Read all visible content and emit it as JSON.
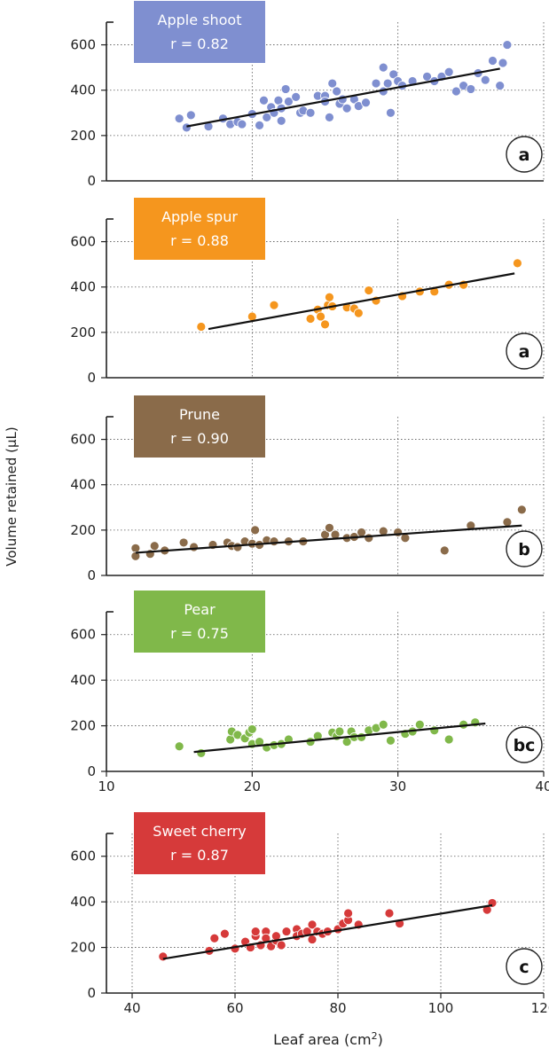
{
  "ylabel": "Volume retained (μL)",
  "chart_data": [
    {
      "type": "scatter",
      "title": "Apple shoot",
      "r_label": "r = 0.82",
      "letter": "a",
      "color": "#7f8fd0",
      "xlim": [
        10,
        40
      ],
      "ylim": [
        0,
        700
      ],
      "yticks": [
        0,
        200,
        400,
        600
      ],
      "ylabel": "Volume retained (μL)",
      "fit": [
        [
          15.5,
          240
        ],
        [
          37,
          495
        ]
      ],
      "points": [
        [
          15,
          275
        ],
        [
          15.5,
          235
        ],
        [
          15.8,
          290
        ],
        [
          17,
          240
        ],
        [
          18,
          275
        ],
        [
          18.5,
          250
        ],
        [
          19,
          260
        ],
        [
          19.3,
          250
        ],
        [
          20,
          295
        ],
        [
          20.5,
          245
        ],
        [
          20.8,
          355
        ],
        [
          21,
          280
        ],
        [
          21.3,
          325
        ],
        [
          21.5,
          300
        ],
        [
          21.8,
          355
        ],
        [
          22,
          320
        ],
        [
          22,
          265
        ],
        [
          22.3,
          405
        ],
        [
          22.5,
          350
        ],
        [
          23,
          370
        ],
        [
          23.3,
          300
        ],
        [
          23.5,
          310
        ],
        [
          24,
          300
        ],
        [
          24.5,
          375
        ],
        [
          25,
          375
        ],
        [
          25,
          350
        ],
        [
          25.3,
          280
        ],
        [
          25.5,
          430
        ],
        [
          25.8,
          395
        ],
        [
          26,
          340
        ],
        [
          26.2,
          360
        ],
        [
          26.5,
          320
        ],
        [
          27,
          360
        ],
        [
          27.3,
          330
        ],
        [
          27.8,
          345
        ],
        [
          28.5,
          430
        ],
        [
          29,
          395
        ],
        [
          29,
          500
        ],
        [
          29.3,
          430
        ],
        [
          29.5,
          300
        ],
        [
          29.7,
          470
        ],
        [
          30,
          440
        ],
        [
          30.3,
          420
        ],
        [
          31,
          440
        ],
        [
          32,
          460
        ],
        [
          32.5,
          440
        ],
        [
          33,
          460
        ],
        [
          34,
          395
        ],
        [
          34.5,
          420
        ],
        [
          35,
          405
        ],
        [
          35.5,
          475
        ],
        [
          36,
          445
        ],
        [
          36.5,
          530
        ],
        [
          37,
          420
        ],
        [
          37.2,
          520
        ],
        [
          37.5,
          600
        ],
        [
          33.5,
          480
        ]
      ]
    },
    {
      "type": "scatter",
      "title": "Apple spur",
      "r_label": "r = 0.88",
      "letter": "a",
      "color": "#f5961e",
      "xlim": [
        10,
        40
      ],
      "ylim": [
        0,
        700
      ],
      "yticks": [
        0,
        200,
        400,
        600
      ],
      "fit": [
        [
          17,
          215
        ],
        [
          38,
          460
        ]
      ],
      "points": [
        [
          16.5,
          225
        ],
        [
          20,
          270
        ],
        [
          21.5,
          320
        ],
        [
          24,
          260
        ],
        [
          24.5,
          300
        ],
        [
          24.7,
          270
        ],
        [
          25,
          235
        ],
        [
          25.2,
          320
        ],
        [
          25.3,
          355
        ],
        [
          25.5,
          315
        ],
        [
          26.5,
          310
        ],
        [
          27,
          305
        ],
        [
          27.3,
          285
        ],
        [
          28,
          385
        ],
        [
          28.5,
          340
        ],
        [
          30.3,
          360
        ],
        [
          31.5,
          380
        ],
        [
          32.5,
          380
        ],
        [
          33.5,
          410
        ],
        [
          34.5,
          410
        ],
        [
          38.2,
          505
        ]
      ]
    },
    {
      "type": "scatter",
      "title": "Prune",
      "r_label": "r = 0.90",
      "letter": "b",
      "color": "#8a6b4a",
      "xlim": [
        10,
        40
      ],
      "ylim": [
        0,
        700
      ],
      "yticks": [
        0,
        200,
        400,
        600
      ],
      "fit": [
        [
          12,
          100
        ],
        [
          38.5,
          220
        ]
      ],
      "points": [
        [
          12,
          120
        ],
        [
          12,
          85
        ],
        [
          13,
          95
        ],
        [
          13.3,
          130
        ],
        [
          14,
          110
        ],
        [
          15.3,
          145
        ],
        [
          16,
          125
        ],
        [
          17.3,
          135
        ],
        [
          18.3,
          145
        ],
        [
          18.6,
          130
        ],
        [
          19,
          125
        ],
        [
          19.5,
          150
        ],
        [
          20,
          140
        ],
        [
          20.2,
          200
        ],
        [
          20.5,
          135
        ],
        [
          21,
          155
        ],
        [
          21.5,
          150
        ],
        [
          22.5,
          150
        ],
        [
          23.5,
          150
        ],
        [
          25,
          180
        ],
        [
          25.3,
          210
        ],
        [
          25.7,
          180
        ],
        [
          26.5,
          165
        ],
        [
          27,
          170
        ],
        [
          27.5,
          190
        ],
        [
          28,
          165
        ],
        [
          29,
          195
        ],
        [
          30,
          190
        ],
        [
          30.5,
          165
        ],
        [
          33.2,
          110
        ],
        [
          35,
          220
        ],
        [
          37.5,
          235
        ],
        [
          38.5,
          290
        ]
      ]
    },
    {
      "type": "scatter",
      "title": "Pear",
      "r_label": "r = 0.75",
      "letter": "bc",
      "color": "#80b84a",
      "xlim": [
        10,
        40
      ],
      "ylim": [
        0,
        700
      ],
      "yticks": [
        0,
        200,
        400,
        600
      ],
      "xticks": [
        10,
        20,
        30,
        40
      ],
      "fit": [
        [
          16,
          85
        ],
        [
          36,
          210
        ]
      ],
      "points": [
        [
          15,
          110
        ],
        [
          16.5,
          80
        ],
        [
          18.5,
          140
        ],
        [
          18.6,
          175
        ],
        [
          19,
          160
        ],
        [
          19.5,
          145
        ],
        [
          19.8,
          170
        ],
        [
          20,
          120
        ],
        [
          20.5,
          130
        ],
        [
          21,
          105
        ],
        [
          21.5,
          115
        ],
        [
          22,
          120
        ],
        [
          22.5,
          140
        ],
        [
          24,
          130
        ],
        [
          24.5,
          155
        ],
        [
          25.5,
          170
        ],
        [
          25.8,
          155
        ],
        [
          26,
          175
        ],
        [
          26.5,
          130
        ],
        [
          26.8,
          175
        ],
        [
          27,
          150
        ],
        [
          27.5,
          150
        ],
        [
          28,
          180
        ],
        [
          28.5,
          190
        ],
        [
          29,
          205
        ],
        [
          29.5,
          135
        ],
        [
          30.5,
          165
        ],
        [
          31,
          175
        ],
        [
          31.5,
          205
        ],
        [
          32.5,
          180
        ],
        [
          34.5,
          205
        ],
        [
          35.3,
          215
        ],
        [
          33.5,
          140
        ],
        [
          20,
          185
        ]
      ]
    },
    {
      "type": "scatter",
      "title": "Sweet cherry",
      "r_label": "r = 0.87",
      "letter": "c",
      "color": "#d63a3a",
      "xlim": [
        35,
        120
      ],
      "ylim": [
        0,
        700
      ],
      "yticks": [
        0,
        200,
        400,
        600
      ],
      "xticks": [
        40,
        60,
        80,
        100,
        120
      ],
      "xlabel": "Leaf area (cm2)",
      "fit": [
        [
          46,
          150
        ],
        [
          110,
          385
        ]
      ],
      "points": [
        [
          46,
          160
        ],
        [
          55,
          185
        ],
        [
          56,
          240
        ],
        [
          58,
          260
        ],
        [
          60,
          195
        ],
        [
          62,
          225
        ],
        [
          63,
          200
        ],
        [
          64,
          250
        ],
        [
          64,
          270
        ],
        [
          65,
          210
        ],
        [
          66,
          270
        ],
        [
          66,
          240
        ],
        [
          67,
          205
        ],
        [
          68,
          230
        ],
        [
          68,
          250
        ],
        [
          69,
          210
        ],
        [
          70,
          270
        ],
        [
          72,
          280
        ],
        [
          72,
          250
        ],
        [
          73,
          260
        ],
        [
          74,
          270
        ],
        [
          75,
          300
        ],
        [
          75,
          235
        ],
        [
          76,
          270
        ],
        [
          77,
          260
        ],
        [
          78,
          270
        ],
        [
          80,
          280
        ],
        [
          81,
          305
        ],
        [
          82,
          320
        ],
        [
          82,
          350
        ],
        [
          84,
          300
        ],
        [
          90,
          350
        ],
        [
          92,
          305
        ],
        [
          109,
          365
        ],
        [
          110,
          395
        ]
      ]
    }
  ]
}
